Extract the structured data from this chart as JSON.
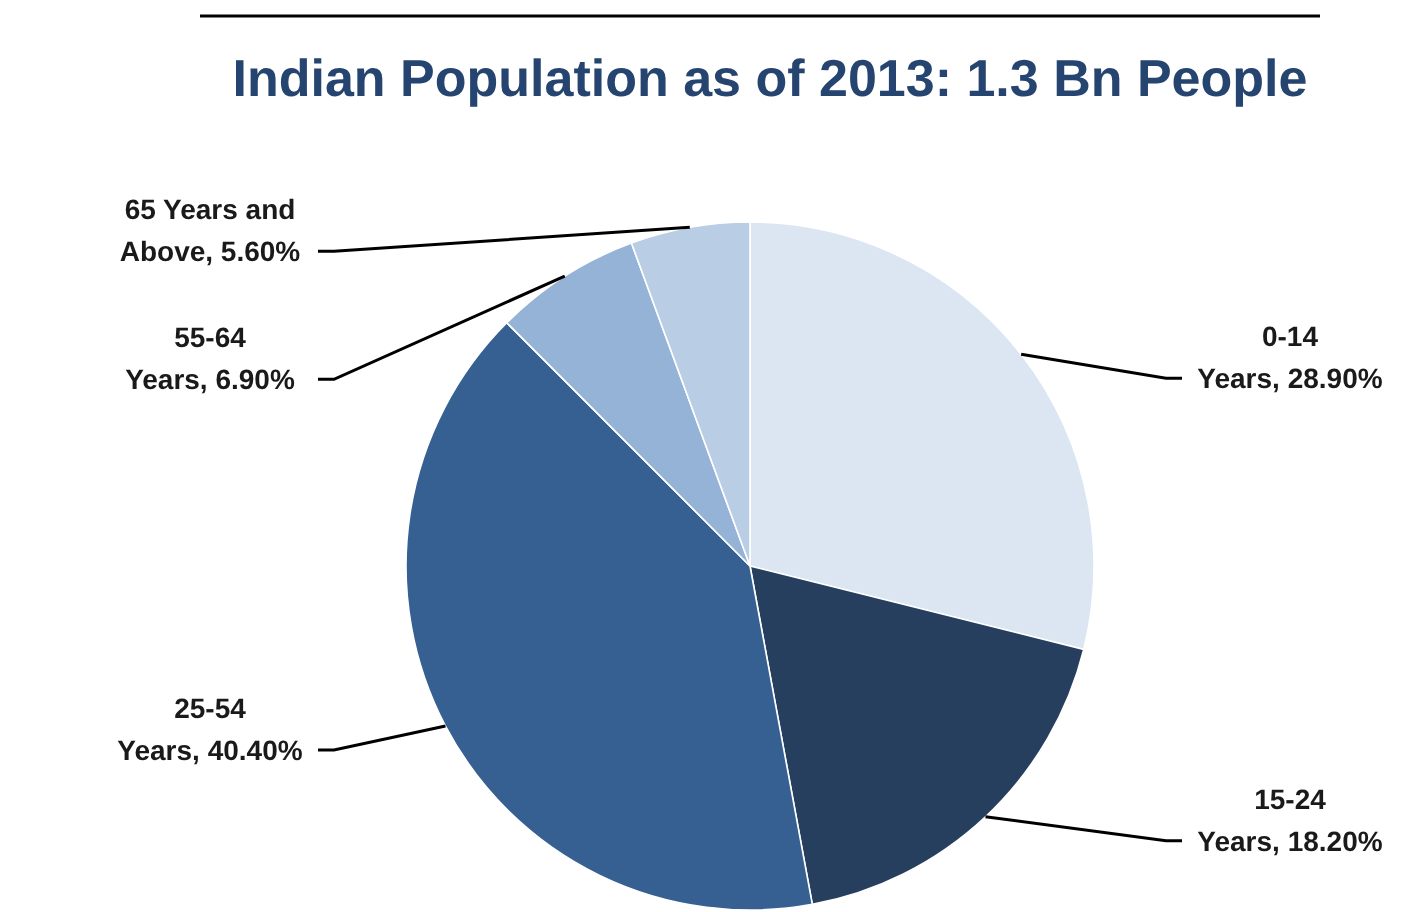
{
  "chart_data": {
    "type": "pie",
    "title": "Indian Population as of 2013: 1.3 Bn People",
    "categories": [
      "0-14 Years",
      "15-24 Years",
      "25-54 Years",
      "55-64 Years",
      "65 Years and Above"
    ],
    "values": [
      28.9,
      18.2,
      40.4,
      6.9,
      5.6
    ],
    "colors": [
      "#dce6f2",
      "#263f5e",
      "#376092",
      "#95b3d7",
      "#b9cde5"
    ],
    "value_labels": [
      "28.90%",
      "18.20%",
      "40.40%",
      "6.90%",
      "5.60%"
    ]
  }
}
